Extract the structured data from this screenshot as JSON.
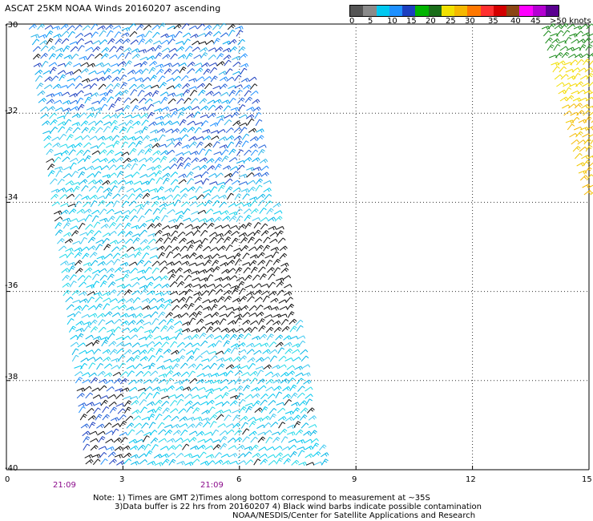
{
  "title": "ASCAT 25KM NOAA Winds 20160207 ascending",
  "legend": {
    "colors": [
      "#555555",
      "#8a8a8a",
      "#00c8f0",
      "#1e90ff",
      "#1c3fbf",
      "#00b400",
      "#1a6e1a",
      "#f0e000",
      "#f5b800",
      "#ff7800",
      "#ff3030",
      "#d40000",
      "#8b4513",
      "#ff00ff",
      "#b400d2",
      "#5a0090"
    ],
    "labels": [
      "0",
      "5",
      "10",
      "15",
      "20",
      "25",
      "30",
      "35",
      "40",
      "45",
      ">50 knots"
    ]
  },
  "axes": {
    "x_ticks": [
      "0",
      "3",
      "6",
      "9",
      "12",
      "15"
    ],
    "y_ticks": [
      "-30",
      "-32",
      "-34",
      "-36",
      "-38",
      "-40"
    ]
  },
  "times": [
    "21:09",
    "21:09"
  ],
  "notes": {
    "line1": "Note: 1) Times are GMT 2)Times along bottom correspond to measurement at ~35S",
    "line2": "3)Data buffer is 22 hrs from 20160207 4) Black wind barbs indicate possible contamination",
    "line3": "NOAA/NESDIS/Center for Satellite Applications and Research"
  }
}
